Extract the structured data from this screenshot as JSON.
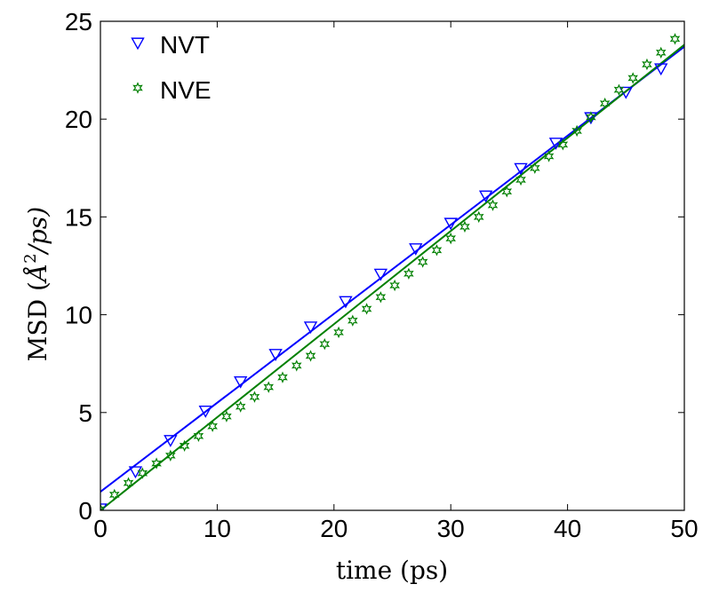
{
  "chart_data": {
    "type": "scatter",
    "title": "",
    "xlabel": "time (ps)",
    "ylabel_prefix": "MSD (",
    "ylabel_symbol": "Å",
    "ylabel_power": "2",
    "ylabel_suffix": "/ps)",
    "xlim": [
      0,
      50
    ],
    "ylim": [
      0,
      25
    ],
    "xticks": [
      0,
      10,
      20,
      30,
      40,
      50
    ],
    "yticks": [
      0,
      5,
      10,
      15,
      20,
      25
    ],
    "grid": false,
    "legend_position": "top-left",
    "series": [
      {
        "name": "NVT",
        "marker": "triangle-down",
        "color": "#0000ff",
        "x": [
          0,
          3,
          6,
          9,
          12,
          15,
          18,
          21,
          24,
          27,
          30,
          33,
          36,
          39,
          42,
          45,
          48
        ],
        "y": [
          0.1,
          2.0,
          3.6,
          5.1,
          6.6,
          8.0,
          9.4,
          10.7,
          12.1,
          13.4,
          14.7,
          16.1,
          17.5,
          18.8,
          20.1,
          21.4,
          22.6
        ],
        "fit": {
          "x": [
            0,
            50
          ],
          "y": [
            0.95,
            23.7
          ]
        }
      },
      {
        "name": "NVE",
        "marker": "star",
        "color": "#008000",
        "x": [
          0,
          1.2,
          2.4,
          3.6,
          4.8,
          6.0,
          7.2,
          8.4,
          9.6,
          10.8,
          12.0,
          13.2,
          14.4,
          15.6,
          16.8,
          18.0,
          19.2,
          20.4,
          21.6,
          22.8,
          24.0,
          25.2,
          26.4,
          27.6,
          28.8,
          30.0,
          31.2,
          32.4,
          33.6,
          34.8,
          36.0,
          37.2,
          38.4,
          39.6,
          40.8,
          42.0,
          43.2,
          44.4,
          45.6,
          46.8,
          48.0,
          49.2
        ],
        "y": [
          0.05,
          0.8,
          1.4,
          1.9,
          2.4,
          2.8,
          3.3,
          3.8,
          4.3,
          4.8,
          5.3,
          5.8,
          6.3,
          6.8,
          7.4,
          7.9,
          8.5,
          9.1,
          9.7,
          10.3,
          10.9,
          11.5,
          12.1,
          12.7,
          13.3,
          13.9,
          14.5,
          15.0,
          15.6,
          16.3,
          16.9,
          17.5,
          18.1,
          18.7,
          19.4,
          20.1,
          20.8,
          21.5,
          22.1,
          22.8,
          23.4,
          24.1
        ],
        "fit": {
          "x": [
            0,
            50
          ],
          "y": [
            0.0,
            23.8
          ]
        }
      }
    ]
  }
}
